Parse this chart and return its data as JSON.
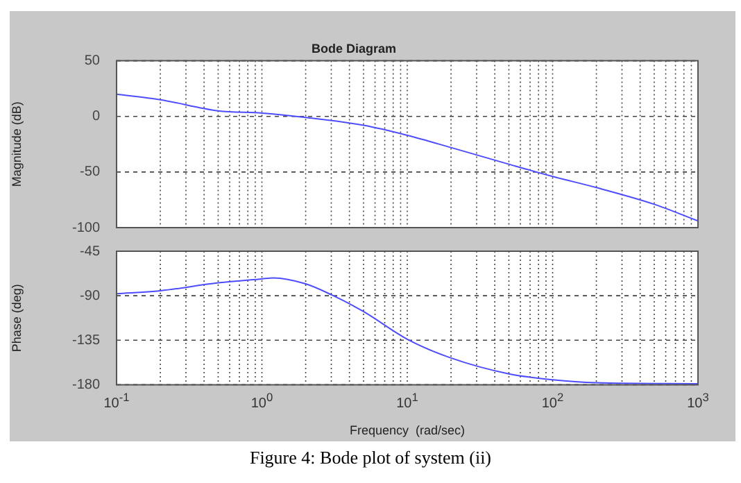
{
  "chart_data": [
    {
      "type": "line",
      "title": "Bode Diagram",
      "ylabel": "Magnitude (dB)",
      "log": "x",
      "grid": true,
      "tick_labels": "y",
      "marker": "none",
      "line_style": "solid",
      "xlim": [
        0.1,
        1000
      ],
      "xticks": [
        {
          "value": 0.1,
          "label": null
        },
        {
          "value": 0.2,
          "label": null
        },
        {
          "value": 0.3,
          "label": null
        },
        {
          "value": 0.4,
          "label": null
        },
        {
          "value": 0.5,
          "label": null
        },
        {
          "value": 0.6,
          "label": null
        },
        {
          "value": 0.7,
          "label": null
        },
        {
          "value": 0.8,
          "label": null
        },
        {
          "value": 0.9,
          "label": null
        },
        {
          "value": 1,
          "label": null
        },
        {
          "value": 2,
          "label": null
        },
        {
          "value": 3,
          "label": null
        },
        {
          "value": 4,
          "label": null
        },
        {
          "value": 5,
          "label": null
        },
        {
          "value": 6,
          "label": null
        },
        {
          "value": 7,
          "label": null
        },
        {
          "value": 8,
          "label": null
        },
        {
          "value": 9,
          "label": null
        },
        {
          "value": 10,
          "label": null
        },
        {
          "value": 20,
          "label": null
        },
        {
          "value": 30,
          "label": null
        },
        {
          "value": 40,
          "label": null
        },
        {
          "value": 50,
          "label": null
        },
        {
          "value": 60,
          "label": null
        },
        {
          "value": 70,
          "label": null
        },
        {
          "value": 80,
          "label": null
        },
        {
          "value": 90,
          "label": null
        },
        {
          "value": 100,
          "label": null
        },
        {
          "value": 200,
          "label": null
        },
        {
          "value": 300,
          "label": null
        },
        {
          "value": 400,
          "label": null
        },
        {
          "value": 500,
          "label": null
        },
        {
          "value": 600,
          "label": null
        },
        {
          "value": 700,
          "label": null
        },
        {
          "value": 800,
          "label": null
        },
        {
          "value": 900,
          "label": null
        },
        {
          "value": 1000,
          "label": null
        }
      ],
      "ylim": [
        -100,
        50
      ],
      "yticks": [
        -100,
        -50,
        0,
        50
      ],
      "series": [
        {
          "color": "#4d4dff",
          "x": [
            0.1,
            0.2,
            0.5,
            1,
            2,
            5,
            10,
            20,
            50,
            100,
            200,
            500,
            1000
          ],
          "values": [
            20,
            15,
            5,
            3,
            -1,
            -8,
            -17,
            -28,
            -43,
            -54,
            -64,
            -79,
            -94
          ]
        }
      ]
    },
    {
      "type": "line",
      "ylabel": "Phase (deg)",
      "xlabel": "Frequency  (rad/sec)",
      "log": "x",
      "grid": true,
      "marker": "none",
      "line_style": "solid",
      "xlim": [
        0.1,
        1000
      ],
      "xticks": [
        {
          "value": 0.1,
          "label": "10$^{-1}$"
        },
        {
          "value": 0.2,
          "label": null
        },
        {
          "value": 0.3,
          "label": null
        },
        {
          "value": 0.4,
          "label": null
        },
        {
          "value": 0.5,
          "label": null
        },
        {
          "value": 0.6,
          "label": null
        },
        {
          "value": 0.7,
          "label": null
        },
        {
          "value": 0.8,
          "label": null
        },
        {
          "value": 0.9,
          "label": null
        },
        {
          "value": 1,
          "label": "10$^{0}$"
        },
        {
          "value": 2,
          "label": null
        },
        {
          "value": 3,
          "label": null
        },
        {
          "value": 4,
          "label": null
        },
        {
          "value": 5,
          "label": null
        },
        {
          "value": 6,
          "label": null
        },
        {
          "value": 7,
          "label": null
        },
        {
          "value": 8,
          "label": null
        },
        {
          "value": 9,
          "label": null
        },
        {
          "value": 10,
          "label": "10$^{1}$"
        },
        {
          "value": 20,
          "label": null
        },
        {
          "value": 30,
          "label": null
        },
        {
          "value": 40,
          "label": null
        },
        {
          "value": 50,
          "label": null
        },
        {
          "value": 60,
          "label": null
        },
        {
          "value": 70,
          "label": null
        },
        {
          "value": 80,
          "label": null
        },
        {
          "value": 90,
          "label": null
        },
        {
          "value": 100,
          "label": "10$^{2}$"
        },
        {
          "value": 200,
          "label": null
        },
        {
          "value": 300,
          "label": null
        },
        {
          "value": 400,
          "label": null
        },
        {
          "value": 500,
          "label": null
        },
        {
          "value": 600,
          "label": null
        },
        {
          "value": 700,
          "label": null
        },
        {
          "value": 800,
          "label": null
        },
        {
          "value": 900,
          "label": null
        },
        {
          "value": 1000,
          "label": "10$^{3}$"
        }
      ],
      "ylim": [
        -180,
        -45
      ],
      "yticks": [
        -180,
        -135,
        -90,
        -45
      ],
      "annotations": [
        "Figure 4: Bode plot of system (ii)"
      ],
      "series": [
        {
          "color": "#4d4dff",
          "x": [
            0.1,
            0.2,
            0.5,
            1,
            1.2,
            2,
            3,
            5,
            10,
            20,
            50,
            100,
            200,
            1000
          ],
          "values": [
            -88,
            -85,
            -77,
            -73,
            -72,
            -78,
            -89,
            -106,
            -134,
            -153,
            -169,
            -175,
            -178,
            -179
          ]
        }
      ]
    }
  ]
}
